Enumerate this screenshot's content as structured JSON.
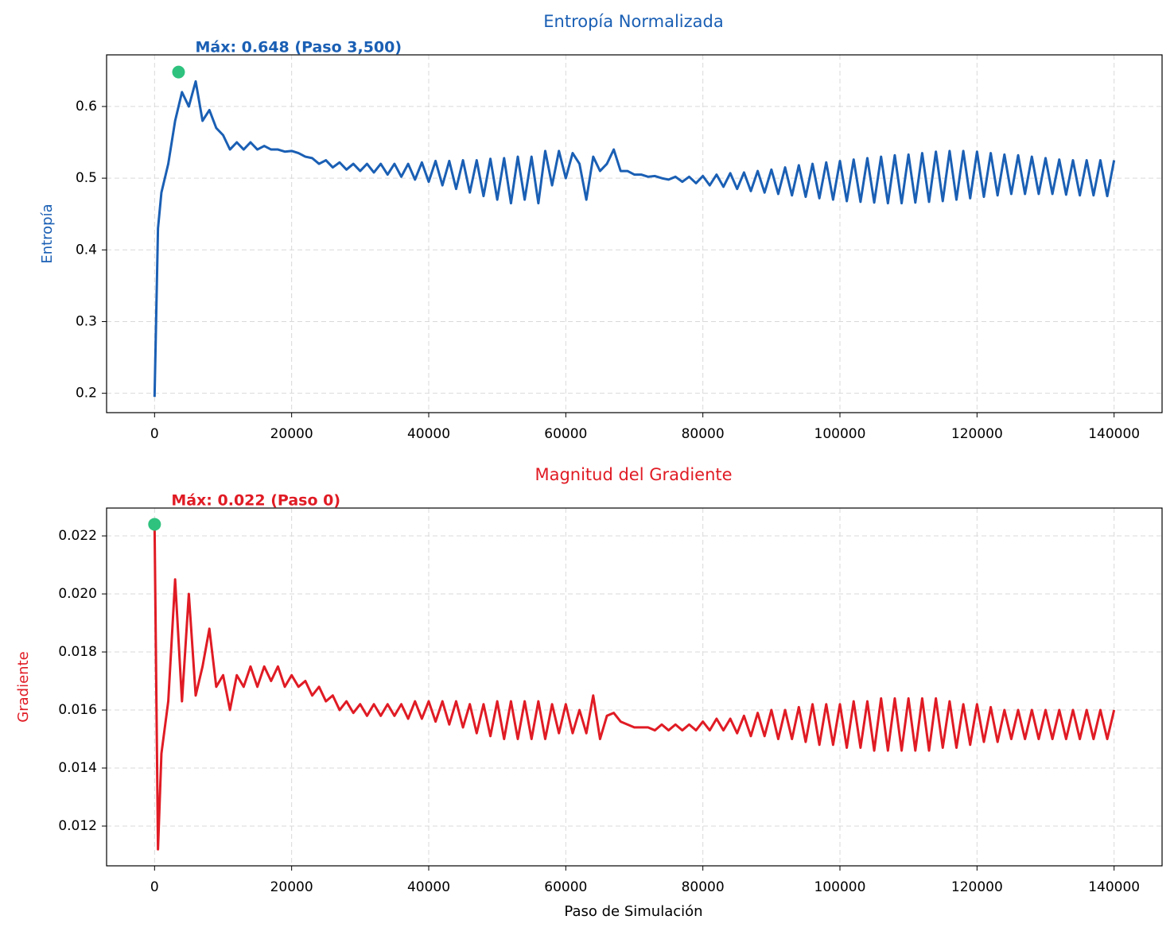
{
  "chart_data": [
    {
      "type": "line",
      "title": "Entropía Normalizada",
      "title_color": "#1a5fb4",
      "ylabel": "Entropía",
      "ylabel_color": "#1a5fb4",
      "xlim": [
        -7000,
        147000
      ],
      "ylim": [
        0.173,
        0.672
      ],
      "xticks": [
        0,
        20000,
        40000,
        60000,
        80000,
        100000,
        120000,
        140000
      ],
      "yticks": [
        0.2,
        0.3,
        0.4,
        0.5,
        0.6
      ],
      "grid": true,
      "x": [
        0,
        500,
        1000,
        2000,
        3000,
        4000,
        5000,
        6000,
        7000,
        8000,
        9000,
        10000,
        11000,
        12000,
        13000,
        14000,
        15000,
        16000,
        17000,
        18000,
        19000,
        20000,
        21000,
        22000,
        23000,
        24000,
        25000,
        26000,
        27000,
        28000,
        29000,
        30000,
        31000,
        32000,
        33000,
        34000,
        35000,
        36000,
        37000,
        38000,
        39000,
        40000,
        41000,
        42000,
        43000,
        44000,
        45000,
        46000,
        47000,
        48000,
        49000,
        50000,
        51000,
        52000,
        53000,
        54000,
        55000,
        56000,
        57000,
        58000,
        59000,
        60000,
        61000,
        62000,
        63000,
        64000,
        65000,
        66000,
        67000,
        68000,
        69000,
        70000,
        71000,
        72000,
        73000,
        74000,
        75000,
        76000,
        77000,
        78000,
        79000,
        80000,
        81000,
        82000,
        83000,
        84000,
        85000,
        86000,
        87000,
        88000,
        89000,
        90000,
        91000,
        92000,
        93000,
        94000,
        95000,
        96000,
        97000,
        98000,
        99000,
        100000,
        101000,
        102000,
        103000,
        104000,
        105000,
        106000,
        107000,
        108000,
        109000,
        110000,
        111000,
        112000,
        113000,
        114000,
        115000,
        116000,
        117000,
        118000,
        119000,
        120000,
        121000,
        122000,
        123000,
        124000,
        125000,
        126000,
        127000,
        128000,
        129000,
        130000,
        131000,
        132000,
        133000,
        134000,
        135000,
        136000,
        137000,
        138000,
        139000,
        140000
      ],
      "series": [
        {
          "name": "Entropía",
          "color": "#1a5fb4",
          "values": [
            0.195,
            0.43,
            0.48,
            0.52,
            0.58,
            0.62,
            0.6,
            0.635,
            0.58,
            0.595,
            0.57,
            0.56,
            0.54,
            0.55,
            0.54,
            0.55,
            0.54,
            0.545,
            0.54,
            0.54,
            0.537,
            0.538,
            0.535,
            0.53,
            0.528,
            0.52,
            0.525,
            0.515,
            0.522,
            0.512,
            0.52,
            0.51,
            0.52,
            0.508,
            0.52,
            0.505,
            0.52,
            0.502,
            0.52,
            0.498,
            0.522,
            0.495,
            0.524,
            0.49,
            0.524,
            0.485,
            0.525,
            0.48,
            0.525,
            0.475,
            0.527,
            0.47,
            0.528,
            0.465,
            0.53,
            0.47,
            0.53,
            0.465,
            0.538,
            0.49,
            0.538,
            0.5,
            0.535,
            0.52,
            0.47,
            0.53,
            0.51,
            0.52,
            0.54,
            0.51,
            0.51,
            0.505,
            0.505,
            0.502,
            0.503,
            0.5,
            0.498,
            0.502,
            0.495,
            0.502,
            0.493,
            0.503,
            0.49,
            0.505,
            0.488,
            0.507,
            0.485,
            0.508,
            0.482,
            0.51,
            0.48,
            0.512,
            0.478,
            0.515,
            0.476,
            0.518,
            0.474,
            0.52,
            0.472,
            0.522,
            0.47,
            0.524,
            0.468,
            0.526,
            0.467,
            0.528,
            0.466,
            0.53,
            0.465,
            0.532,
            0.465,
            0.533,
            0.466,
            0.535,
            0.467,
            0.537,
            0.468,
            0.538,
            0.47,
            0.538,
            0.472,
            0.537,
            0.474,
            0.535,
            0.476,
            0.533,
            0.478,
            0.532,
            0.478,
            0.53,
            0.478,
            0.528,
            0.478,
            0.526,
            0.477,
            0.525,
            0.476,
            0.525,
            0.476,
            0.525,
            0.475,
            0.525
          ]
        }
      ],
      "max_point": {
        "x": 3500,
        "y": 0.648,
        "color": "#2ec27e",
        "label": "Máx: 0.648 (Paso 3,500)"
      }
    },
    {
      "type": "line",
      "title": "Magnitud del Gradiente",
      "title_color": "#e01b24",
      "ylabel": "Gradiente",
      "ylabel_color": "#e01b24",
      "xlabel": "Paso de Simulación",
      "xlim": [
        -7000,
        147000
      ],
      "ylim": [
        0.01063,
        0.02296
      ],
      "xticks": [
        0,
        20000,
        40000,
        60000,
        80000,
        100000,
        120000,
        140000
      ],
      "yticks": [
        0.012,
        0.014,
        0.016,
        0.018,
        {
          "value": 0.02,
          "label": "0.020"
        },
        0.022
      ],
      "grid": true,
      "x": [
        0,
        500,
        1000,
        2000,
        3000,
        4000,
        5000,
        6000,
        7000,
        8000,
        9000,
        10000,
        11000,
        12000,
        13000,
        14000,
        15000,
        16000,
        17000,
        18000,
        19000,
        20000,
        21000,
        22000,
        23000,
        24000,
        25000,
        26000,
        27000,
        28000,
        29000,
        30000,
        31000,
        32000,
        33000,
        34000,
        35000,
        36000,
        37000,
        38000,
        39000,
        40000,
        41000,
        42000,
        43000,
        44000,
        45000,
        46000,
        47000,
        48000,
        49000,
        50000,
        51000,
        52000,
        53000,
        54000,
        55000,
        56000,
        57000,
        58000,
        59000,
        60000,
        61000,
        62000,
        63000,
        64000,
        65000,
        66000,
        67000,
        68000,
        69000,
        70000,
        71000,
        72000,
        73000,
        74000,
        75000,
        76000,
        77000,
        78000,
        79000,
        80000,
        81000,
        82000,
        83000,
        84000,
        85000,
        86000,
        87000,
        88000,
        89000,
        90000,
        91000,
        92000,
        93000,
        94000,
        95000,
        96000,
        97000,
        98000,
        99000,
        100000,
        101000,
        102000,
        103000,
        104000,
        105000,
        106000,
        107000,
        108000,
        109000,
        110000,
        111000,
        112000,
        113000,
        114000,
        115000,
        116000,
        117000,
        118000,
        119000,
        120000,
        121000,
        122000,
        123000,
        124000,
        125000,
        126000,
        127000,
        128000,
        129000,
        130000,
        131000,
        132000,
        133000,
        134000,
        135000,
        136000,
        137000,
        138000,
        139000,
        140000
      ],
      "series": [
        {
          "name": "Gradiente",
          "color": "#e01b24",
          "values": [
            0.0224,
            0.0112,
            0.0145,
            0.0163,
            0.0205,
            0.0163,
            0.02,
            0.0165,
            0.0175,
            0.0188,
            0.0168,
            0.0172,
            0.016,
            0.0172,
            0.0168,
            0.0175,
            0.0168,
            0.0175,
            0.017,
            0.0175,
            0.0168,
            0.0172,
            0.0168,
            0.017,
            0.0165,
            0.0168,
            0.0163,
            0.0165,
            0.016,
            0.0163,
            0.0159,
            0.0162,
            0.0158,
            0.0162,
            0.0158,
            0.0162,
            0.0158,
            0.0162,
            0.0157,
            0.0163,
            0.0157,
            0.0163,
            0.0156,
            0.0163,
            0.0155,
            0.0163,
            0.0154,
            0.0162,
            0.0152,
            0.0162,
            0.0151,
            0.0163,
            0.015,
            0.0163,
            0.015,
            0.0163,
            0.015,
            0.0163,
            0.015,
            0.0162,
            0.0152,
            0.0162,
            0.0152,
            0.016,
            0.0152,
            0.0165,
            0.015,
            0.0158,
            0.0159,
            0.0156,
            0.0155,
            0.0154,
            0.0154,
            0.0154,
            0.0153,
            0.0155,
            0.0153,
            0.0155,
            0.0153,
            0.0155,
            0.0153,
            0.0156,
            0.0153,
            0.0157,
            0.0153,
            0.0157,
            0.0152,
            0.0158,
            0.0151,
            0.0159,
            0.0151,
            0.016,
            0.015,
            0.016,
            0.015,
            0.0161,
            0.0149,
            0.0162,
            0.0148,
            0.0162,
            0.0148,
            0.0162,
            0.0147,
            0.0163,
            0.0147,
            0.0163,
            0.0146,
            0.0164,
            0.0146,
            0.0164,
            0.0146,
            0.0164,
            0.0146,
            0.0164,
            0.0146,
            0.0164,
            0.0147,
            0.0163,
            0.0147,
            0.0162,
            0.0148,
            0.0162,
            0.0149,
            0.0161,
            0.0149,
            0.016,
            0.015,
            0.016,
            0.015,
            0.016,
            0.015,
            0.016,
            0.015,
            0.016,
            0.015,
            0.016,
            0.015,
            0.016,
            0.015,
            0.016,
            0.015,
            0.016
          ]
        }
      ],
      "max_point": {
        "x": 0,
        "y": 0.0224,
        "color": "#2ec27e",
        "label": "Máx: 0.022 (Paso 0)"
      }
    }
  ]
}
